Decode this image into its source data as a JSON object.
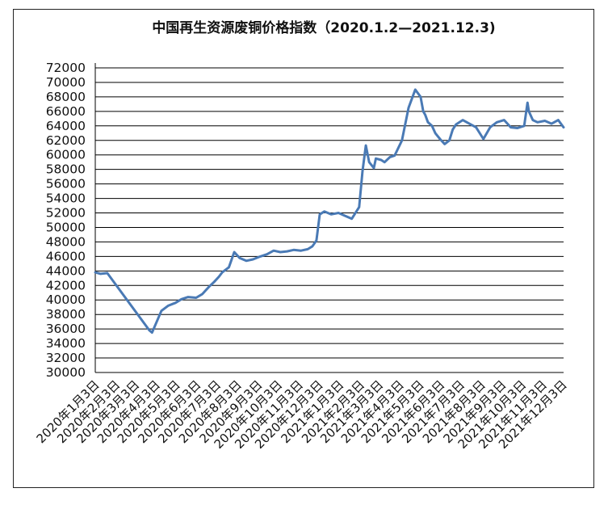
{
  "chart_data": {
    "type": "line",
    "title": "中国再生资源废铜价格指数（2020.1.2—2021.12.3)",
    "ylim": [
      30000,
      72000
    ],
    "ytick_labels": [
      "30000",
      "32000",
      "34000",
      "36000",
      "38000",
      "40000",
      "42000",
      "44000",
      "46000",
      "48000",
      "50000",
      "52000",
      "54000",
      "56000",
      "58000",
      "60000",
      "62000",
      "64000",
      "66000",
      "68000",
      "70000",
      "72000"
    ],
    "xtick_labels": [
      "2020年1月3日",
      "2020年2月3日",
      "2020年3月3日",
      "2020年4月3日",
      "2020年5月3日",
      "2020年6月3日",
      "2020年7月3日",
      "2020年8月3日",
      "2020年9月3日",
      "2020年10月3日",
      "2020年11月3日",
      "2020年12月3日",
      "2021年1月3日",
      "2021年2月3日",
      "2021年3月3日",
      "2021年4月3日",
      "2021年5月3日",
      "2021年6月3日",
      "2021年7月3日",
      "2021年8月3日",
      "2021年9月3日",
      "2021年10月3日",
      "2021年11月3日",
      "2021年12月3日"
    ],
    "grid": true,
    "legend": "none",
    "line_color": "#4a7ab5",
    "series": [
      {
        "x": [
          "2020-01-02",
          "2020-01-10",
          "2020-01-20",
          "2020-03-23",
          "2020-03-27",
          "2020-04-03",
          "2020-04-10",
          "2020-04-20",
          "2020-05-01",
          "2020-05-10",
          "2020-05-20",
          "2020-06-01",
          "2020-06-10",
          "2020-06-20",
          "2020-06-28",
          "2020-07-05",
          "2020-07-10",
          "2020-07-20",
          "2020-07-28",
          "2020-08-05",
          "2020-08-15",
          "2020-08-25",
          "2020-09-05",
          "2020-09-15",
          "2020-09-25",
          "2020-10-05",
          "2020-10-15",
          "2020-10-25",
          "2020-11-05",
          "2020-11-15",
          "2020-11-22",
          "2020-11-28",
          "2020-12-03",
          "2020-12-10",
          "2020-12-20",
          "2020-12-31",
          "2021-01-10",
          "2021-01-20",
          "2021-01-31",
          "2021-02-05",
          "2021-02-10",
          "2021-02-15",
          "2021-02-22",
          "2021-02-25",
          "2021-03-05",
          "2021-03-10",
          "2021-03-18",
          "2021-03-25",
          "2021-04-05",
          "2021-04-15",
          "2021-04-25",
          "2021-05-03",
          "2021-05-07",
          "2021-05-10",
          "2021-05-14",
          "2021-05-20",
          "2021-05-25",
          "2021-06-01",
          "2021-06-08",
          "2021-06-15",
          "2021-06-20",
          "2021-06-25",
          "2021-07-05",
          "2021-07-15",
          "2021-07-25",
          "2021-08-05",
          "2021-08-15",
          "2021-08-25",
          "2021-09-05",
          "2021-09-15",
          "2021-09-25",
          "2021-10-05",
          "2021-10-10",
          "2021-10-12",
          "2021-10-18",
          "2021-10-25",
          "2021-11-05",
          "2021-11-15",
          "2021-11-25",
          "2021-12-03"
        ],
        "values": [
          43800,
          43600,
          43700,
          35800,
          35500,
          37000,
          38500,
          39200,
          39600,
          40100,
          40400,
          40300,
          40800,
          41800,
          42500,
          43200,
          43800,
          44500,
          46600,
          45800,
          45400,
          45600,
          46000,
          46300,
          46800,
          46600,
          46700,
          46900,
          46800,
          47000,
          47400,
          48200,
          51800,
          52200,
          51800,
          52000,
          51600,
          51200,
          52800,
          57800,
          61300,
          59000,
          58200,
          59500,
          59300,
          59000,
          59700,
          59900,
          62000,
          66500,
          69000,
          68000,
          66000,
          65500,
          64500,
          64000,
          63000,
          62200,
          61500,
          62000,
          63500,
          64200,
          64800,
          64300,
          63800,
          62200,
          63800,
          64500,
          64800,
          63800,
          63700,
          64000,
          67200,
          66000,
          64800,
          64500,
          64700,
          64300,
          64800,
          63800
        ]
      }
    ]
  }
}
